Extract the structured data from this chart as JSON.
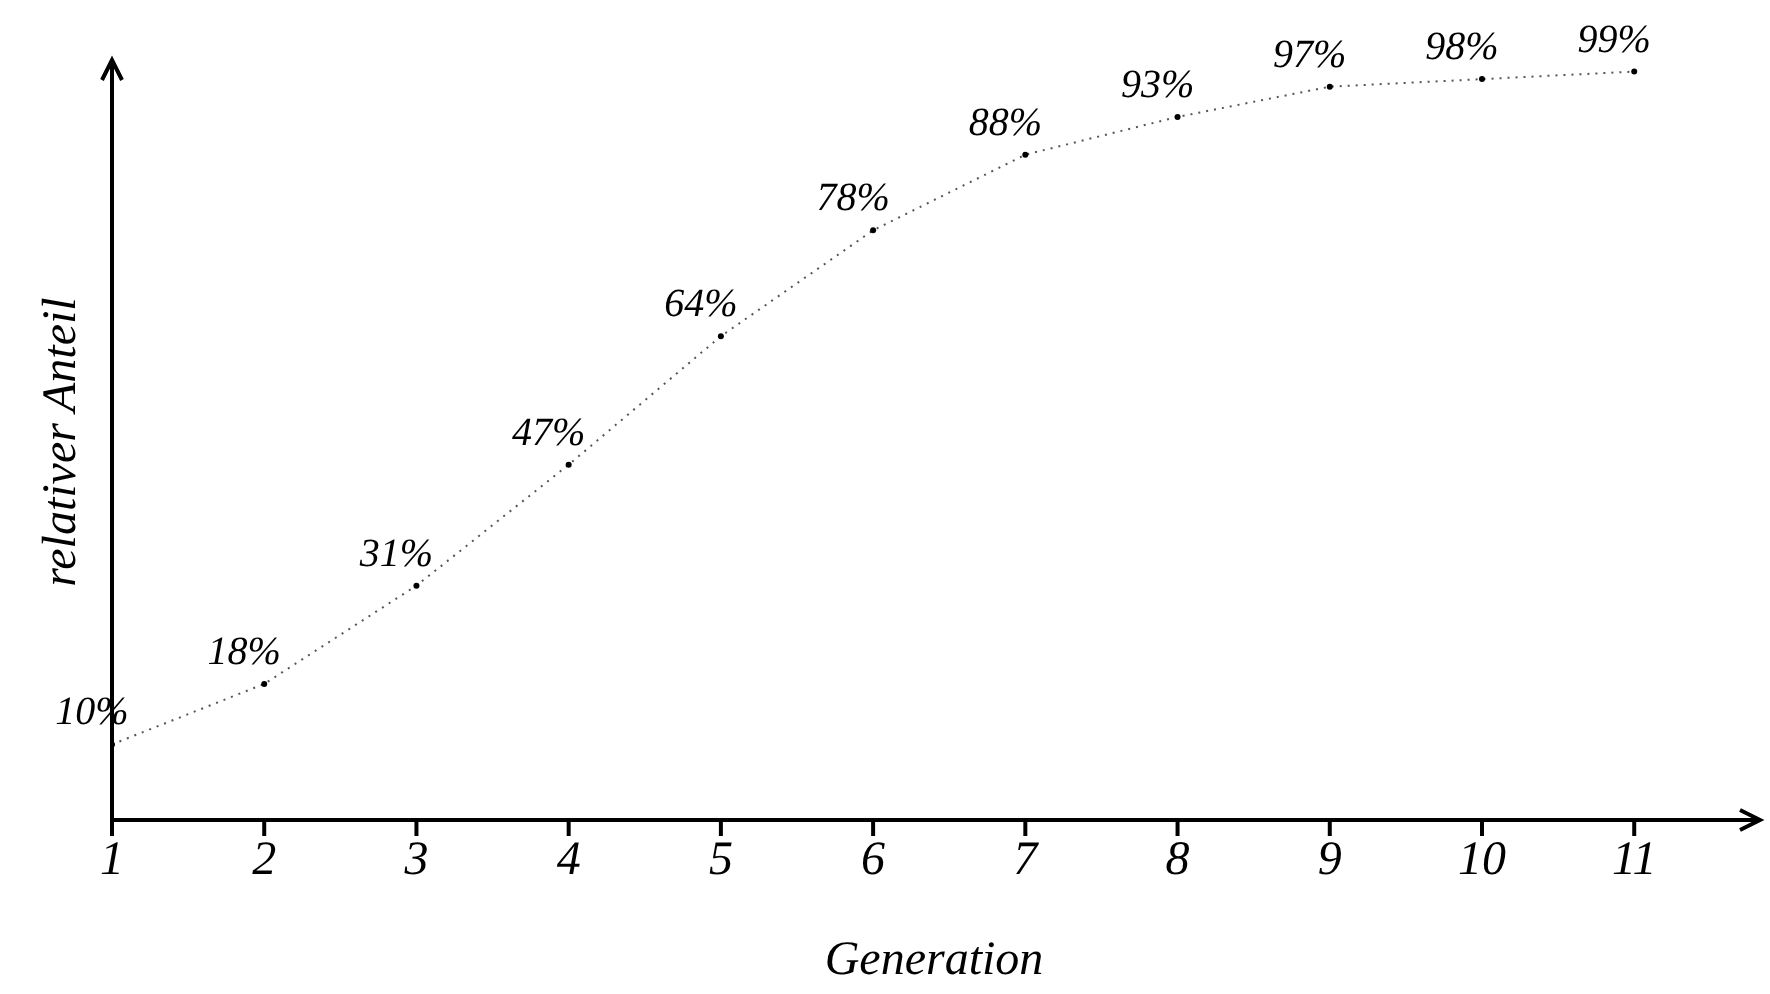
{
  "chart_data": {
    "type": "line",
    "xlabel": "Generation",
    "ylabel": "relativer Anteil",
    "x": [
      1,
      2,
      3,
      4,
      5,
      6,
      7,
      8,
      9,
      10,
      11
    ],
    "values": [
      10,
      18,
      31,
      47,
      64,
      78,
      88,
      93,
      97,
      98,
      99
    ],
    "value_labels": [
      "10%",
      "18%",
      "31%",
      "47%",
      "64%",
      "78%",
      "88%",
      "93%",
      "97%",
      "98%",
      "99%"
    ],
    "color": "#555555",
    "xlim": [
      1,
      11.8
    ],
    "xticks": [
      1,
      2,
      3,
      4,
      5,
      6,
      7,
      8,
      9,
      10,
      11
    ],
    "ylim": [
      0,
      100
    ],
    "tick_labels": "x",
    "marker": "circle",
    "line_style": "dotted",
    "grid": false
  }
}
